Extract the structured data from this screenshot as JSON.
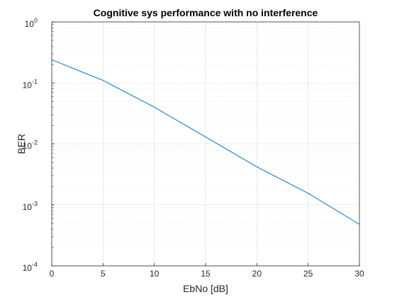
{
  "chart_data": {
    "type": "line",
    "title": "Cognitive sys performance with no interference",
    "xlabel": "EbNo [dB]",
    "ylabel": "BER",
    "xlim": [
      0,
      30
    ],
    "ylim": [
      0.0001,
      1
    ],
    "yscale": "log",
    "grid": true,
    "minor_grid": true,
    "x_ticks": [
      "0",
      "5",
      "10",
      "15",
      "20",
      "25",
      "30"
    ],
    "y_ticks": [
      {
        "base": "10",
        "exp": "-4"
      },
      {
        "base": "10",
        "exp": "-3"
      },
      {
        "base": "10",
        "exp": "-2"
      },
      {
        "base": "10",
        "exp": "-1"
      },
      {
        "base": "10",
        "exp": "0"
      }
    ],
    "series": [
      {
        "color": "#0072bd",
        "x": [
          0,
          5,
          10,
          15,
          20,
          25,
          30
        ],
        "y": [
          0.24,
          0.11,
          0.04,
          0.013,
          0.0042,
          0.00155,
          0.00048
        ]
      }
    ]
  }
}
